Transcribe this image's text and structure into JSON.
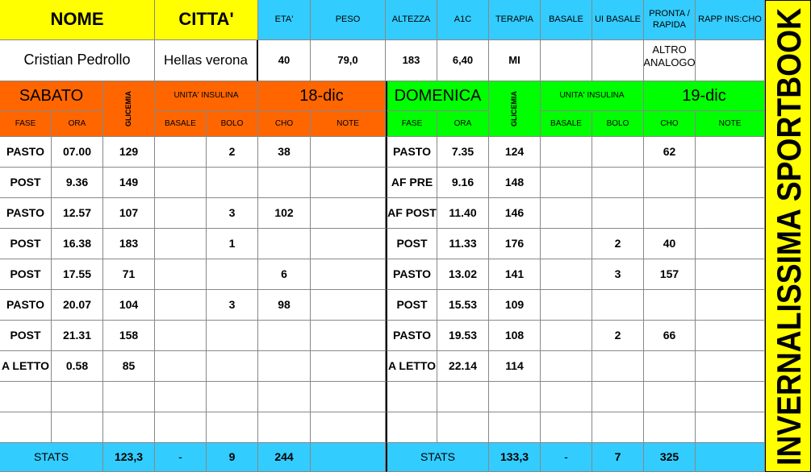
{
  "header": {
    "nome_label": "NOME",
    "citta_label": "CITTA'",
    "columns": [
      "ETA'",
      "PESO",
      "ALTEZZA",
      "A1C",
      "TERAPIA",
      "BASALE",
      "UI BASALE",
      "PRONTA / RAPIDA",
      "RAPP INS:CHO"
    ],
    "nome": "Cristian Pedrollo",
    "citta": "Hellas verona",
    "values": [
      "40",
      "79,0",
      "183",
      "6,40",
      "MI",
      null,
      null,
      "ALTRO ANALOGO",
      null
    ]
  },
  "days": [
    {
      "day": "SABATO",
      "glicemia_label": "GLICEMIA",
      "units_label": "UNITA' INSULINA",
      "date": "18-dic",
      "columns": [
        "FASE",
        "ORA",
        "BASALE",
        "BOLO",
        "CHO",
        "NOTE"
      ],
      "rows": [
        [
          "PASTO",
          "07.00",
          129,
          null,
          2,
          38,
          null
        ],
        [
          "POST",
          "9.36",
          149,
          null,
          null,
          null,
          null
        ],
        [
          "PASTO",
          "12.57",
          107,
          null,
          3,
          102,
          null
        ],
        [
          "POST",
          "16.38",
          183,
          null,
          1,
          null,
          null
        ],
        [
          "POST",
          "17.55",
          71,
          null,
          null,
          6,
          null
        ],
        [
          "PASTO",
          "20.07",
          104,
          null,
          3,
          98,
          null
        ],
        [
          "POST",
          "21.31",
          158,
          null,
          null,
          null,
          null
        ],
        [
          "A LETTO",
          "0.58",
          85,
          null,
          null,
          null,
          null
        ]
      ],
      "stats": {
        "label": "STATS",
        "glicemia": "123,3",
        "basale": "-",
        "bolo": "9",
        "cho": "244"
      }
    },
    {
      "day": "DOMENICA",
      "glicemia_label": "GLICEMIA",
      "units_label": "UNITA' INSULINA",
      "date": "19-dic",
      "columns": [
        "FASE",
        "ORA",
        "BASALE",
        "BOLO",
        "CHO",
        "NOTE"
      ],
      "rows": [
        [
          "PASTO",
          "7.35",
          124,
          null,
          null,
          62,
          null
        ],
        [
          "AF PRE",
          "9.16",
          148,
          null,
          null,
          null,
          null
        ],
        [
          "AF POST",
          "11.40",
          146,
          null,
          null,
          null,
          null
        ],
        [
          "POST",
          "11.33",
          176,
          null,
          2,
          40,
          null
        ],
        [
          "PASTO",
          "13.02",
          141,
          null,
          3,
          157,
          null
        ],
        [
          "POST",
          "15.53",
          109,
          null,
          null,
          null,
          null
        ],
        [
          "PASTO",
          "19.53",
          108,
          null,
          2,
          66,
          null
        ],
        [
          "A LETTO",
          "22.14",
          114,
          null,
          null,
          null,
          null
        ]
      ],
      "stats": {
        "label": "STATS",
        "glicemia": "133,3",
        "basale": "-",
        "bolo": "7",
        "cho": "325"
      }
    }
  ],
  "side_text": "INVERNALISSIMA SPORTBOOK"
}
